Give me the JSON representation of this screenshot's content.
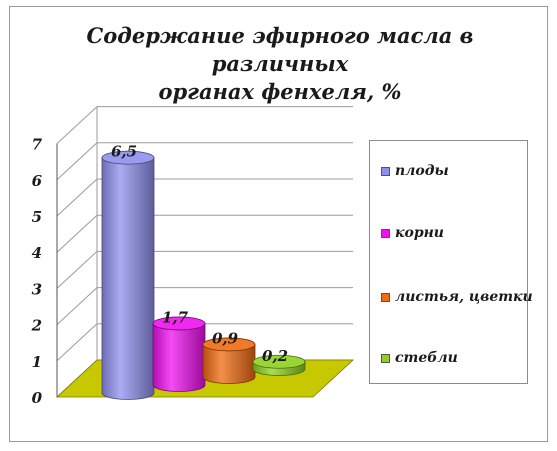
{
  "chart_data": {
    "type": "bar",
    "style": "3d-cylinder",
    "title": "Содержание эфирного масла в различных органах фенхеля, %",
    "title_lines": [
      "Содержание эфирного масла в различных",
      "органах фенхеля, %"
    ],
    "categories": [
      "плоды",
      "корни",
      "листья, цветки",
      "стебли"
    ],
    "values": [
      6.5,
      1.7,
      0.9,
      0.2
    ],
    "data_labels": [
      "6,5",
      "1,7",
      "0,9",
      "0,2"
    ],
    "colors": [
      "#8f90ee",
      "#ee10ee",
      "#f06a10",
      "#8ed11e"
    ],
    "y_ticks": [
      "0",
      "1",
      "2",
      "3",
      "4",
      "5",
      "6",
      "7"
    ],
    "ylim": [
      0,
      7
    ],
    "xlabel": "",
    "ylabel": "",
    "grid": true,
    "floor_color": "#c8c800",
    "legend_position": "right"
  }
}
